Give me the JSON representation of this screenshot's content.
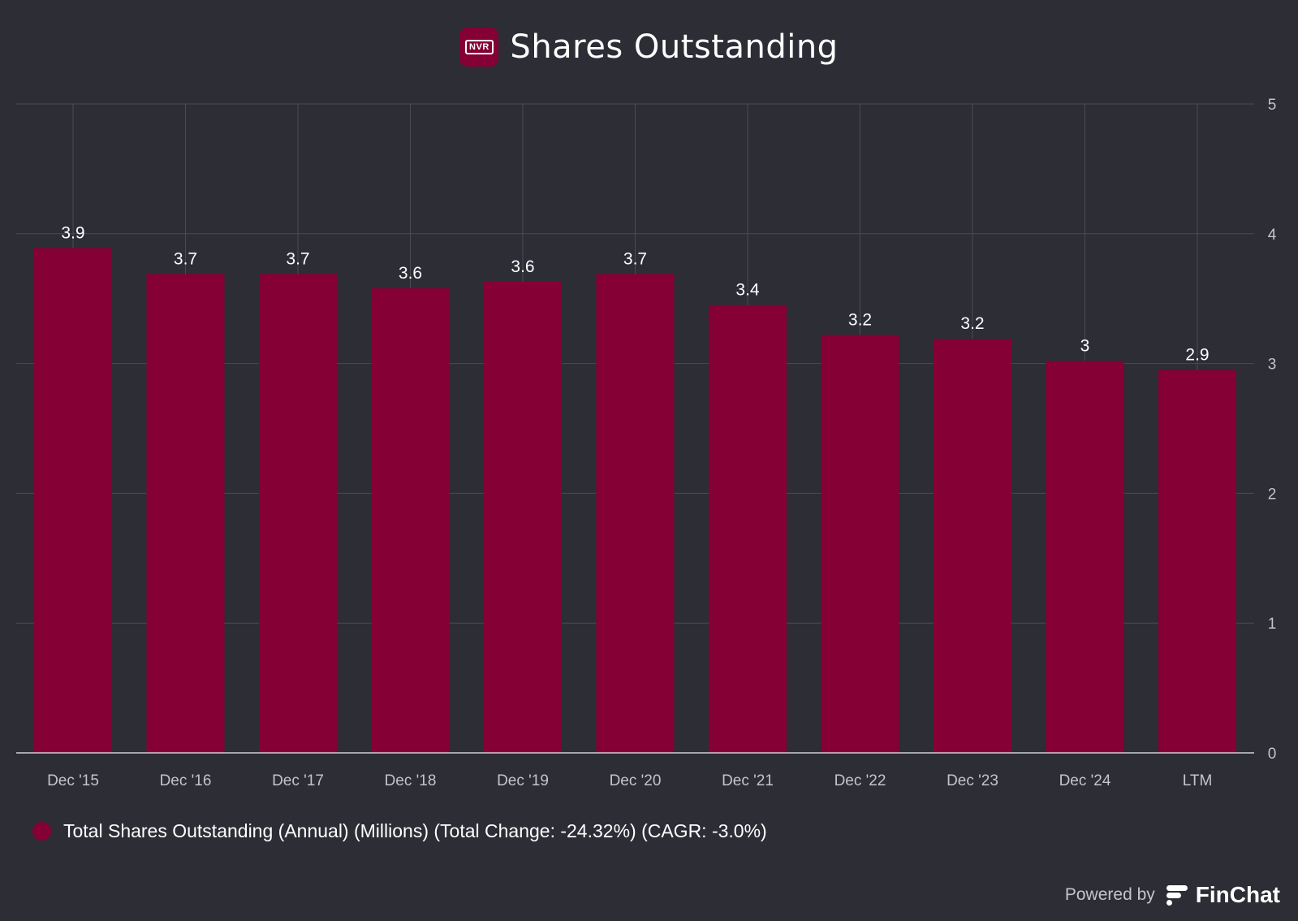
{
  "header": {
    "logo_text": "NVR",
    "title": "Shares Outstanding"
  },
  "chart_data": {
    "type": "bar",
    "title": "Shares Outstanding",
    "categories": [
      "Dec '15",
      "Dec '16",
      "Dec '17",
      "Dec '18",
      "Dec '19",
      "Dec '20",
      "Dec '21",
      "Dec '22",
      "Dec '23",
      "Dec '24",
      "LTM"
    ],
    "values": [
      3.9,
      3.7,
      3.7,
      3.6,
      3.6,
      3.7,
      3.4,
      3.2,
      3.2,
      3,
      2.9
    ],
    "bar_heights": [
      3.89,
      3.69,
      3.69,
      3.58,
      3.63,
      3.69,
      3.45,
      3.22,
      3.19,
      3.02,
      2.95
    ],
    "data_labels": [
      "3.9",
      "3.7",
      "3.7",
      "3.6",
      "3.6",
      "3.7",
      "3.4",
      "3.2",
      "3.2",
      "3",
      "2.9"
    ],
    "y_ticks": [
      "0",
      "1",
      "2",
      "3",
      "4",
      "5"
    ],
    "ylim": [
      0,
      5
    ],
    "y_axis_side": "right",
    "grid": true,
    "xlabel": "",
    "ylabel": "",
    "bar_color": "#850035",
    "series_name": "Total Shares Outstanding (Annual) (Millions) (Total Change: -24.32%) (CAGR: -3.0%)"
  },
  "legend": {
    "label": "Total Shares Outstanding (Annual) (Millions) (Total Change: -24.32%) (CAGR: -3.0%)",
    "color": "#850035"
  },
  "footer": {
    "powered_by": "Powered by",
    "brand": "FinChat"
  }
}
